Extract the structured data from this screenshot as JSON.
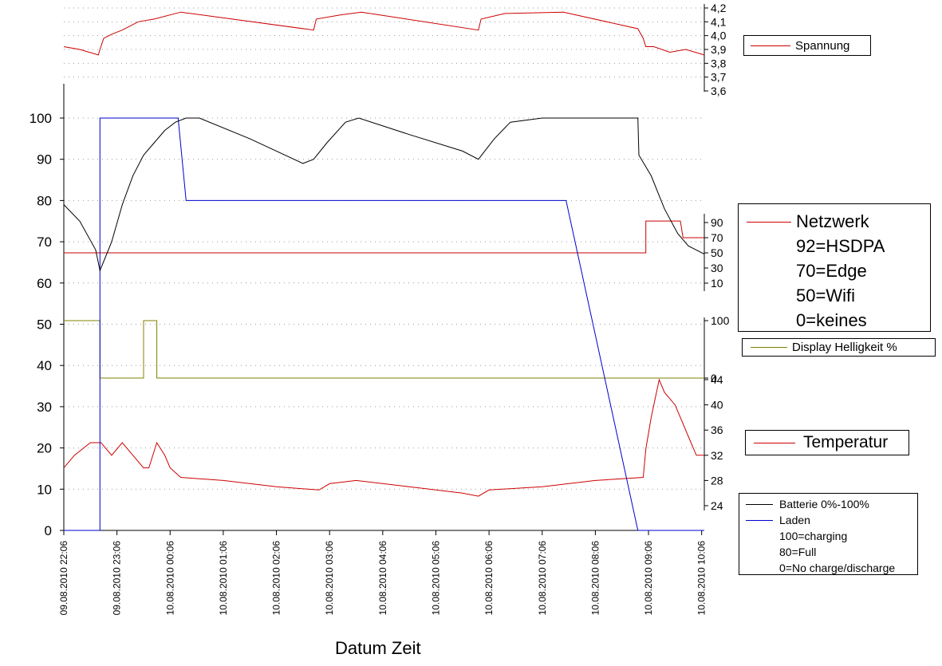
{
  "chart_data": {
    "type": "line",
    "xlabel": "Datum Zeit",
    "x_ticks": [
      "09.08.2010 22:06",
      "09.08.2010 23:06",
      "10.08.2010 00:06",
      "10.08.2010 01:06",
      "10.08.2010 02:06",
      "10.08.2010 03:06",
      "10.08.2010 04:06",
      "10.08.2010 05:06",
      "10.08.2010 06:06",
      "10.08.2010 07:06",
      "10.08.2010 08:06",
      "10.08.2010 09:06",
      "10.08.2010 10:06"
    ],
    "x_range_hours": [
      0,
      12.05
    ],
    "colors": {
      "batterie": "#000000",
      "laden": "#0000cc",
      "netzwerk": "#cc0000",
      "spannung": "#cc0000",
      "display": "#808000",
      "temperatur": "#cc0000"
    },
    "panels": {
      "main": {
        "ylim": [
          0,
          105
        ],
        "y_ticks": [
          "0",
          "10",
          "20",
          "30",
          "40",
          "50",
          "60",
          "70",
          "80",
          "90",
          "100"
        ],
        "series": [
          {
            "key": "batterie",
            "name": "Batterie 0%-100%",
            "x": [
              0,
              0.3,
              0.6,
              0.68,
              0.9,
              1.1,
              1.3,
              1.5,
              1.7,
              1.9,
              2.1,
              2.3,
              2.55,
              3.5,
              4.5,
              4.7,
              4.95,
              5.3,
              5.55,
              6.5,
              7.5,
              7.8,
              8.1,
              8.4,
              9,
              9.9,
              10.8,
              10.82,
              11.05,
              11.3,
              11.55,
              11.75,
              12.05
            ],
            "y": [
              79,
              75,
              68,
              63,
              70,
              79,
              86,
              91,
              94,
              97,
              99,
              100,
              100,
              95,
              89,
              90,
              94,
              99,
              100,
              96,
              92,
              90,
              95,
              99,
              100,
              100,
              100,
              91,
              86,
              78,
              72,
              69,
              67
            ]
          },
          {
            "key": "laden",
            "name": "Laden",
            "x": [
              0,
              0.68,
              0.68,
              2.15,
              2.3,
              9.45,
              10.8,
              12.05
            ],
            "y": [
              0,
              0,
              100,
              100,
              80,
              80,
              0,
              0
            ]
          }
        ]
      },
      "spannung": {
        "ylim": [
          3.6,
          4.2
        ],
        "y_ticks": [
          "3,6",
          "3,7",
          "3,8",
          "3,9",
          "4,0",
          "4,1",
          "4,2"
        ],
        "series": [
          {
            "key": "spannung",
            "name": "Spannung",
            "x": [
              0,
              0.3,
              0.65,
              0.68,
              0.75,
              0.9,
              1.1,
              1.4,
              1.7,
              2.2,
              4.7,
              4.75,
              5.2,
              5.6,
              7.8,
              7.85,
              8.3,
              9.4,
              10.8,
              10.9,
              10.95,
              11.1,
              11.4,
              11.7,
              12.05
            ],
            "y": [
              3.92,
              3.9,
              3.86,
              3.9,
              3.98,
              4.01,
              4.04,
              4.1,
              4.12,
              4.17,
              4.04,
              4.12,
              4.15,
              4.17,
              4.04,
              4.12,
              4.16,
              4.17,
              4.05,
              3.98,
              3.92,
              3.92,
              3.88,
              3.9,
              3.86
            ]
          }
        ]
      },
      "netzwerk": {
        "ylim": [
          0,
          100
        ],
        "y_ticks": [
          "10",
          "30",
          "50",
          "70",
          "90"
        ],
        "series": [
          {
            "key": "netzwerk",
            "name": "Netzwerk",
            "x": [
              0,
              10.95,
              10.95,
              11.6,
              11.65,
              12.05
            ],
            "y": [
              50,
              50,
              92,
              92,
              70,
              70
            ]
          }
        ],
        "legend": [
          "Netzwerk",
          "92=HSDPA",
          "70=Edge",
          "50=Wifi",
          "0=keines"
        ]
      },
      "display": {
        "ylim": [
          0,
          100
        ],
        "y_ticks": [
          "0",
          "100"
        ],
        "series": [
          {
            "key": "display",
            "name": "Display Helligkeit %",
            "x": [
              0,
              0.68,
              0.68,
              1.5,
              1.5,
              1.75,
              1.75,
              12.05
            ],
            "y": [
              100,
              100,
              0,
              0,
              100,
              100,
              0,
              0
            ]
          }
        ]
      },
      "temperatur": {
        "ylim": [
          20,
          44
        ],
        "y_ticks": [
          "24",
          "28",
          "32",
          "36",
          "40",
          "44"
        ],
        "series": [
          {
            "key": "temperatur",
            "name": "Temperatur",
            "x": [
              0,
              0.2,
              0.5,
              0.7,
              0.9,
              1.1,
              1.3,
              1.5,
              1.6,
              1.75,
              1.9,
              2,
              2.2,
              3,
              4,
              4.8,
              5,
              5.5,
              6.5,
              7.5,
              7.8,
              8,
              9,
              10,
              10.9,
              10.95,
              11.05,
              11.2,
              11.3,
              11.5,
              11.6,
              11.8,
              11.9,
              12.05
            ],
            "y": [
              30,
              32,
              34,
              34,
              32,
              34,
              32,
              30,
              30,
              34,
              32,
              30,
              28.5,
              28,
              27,
              26.5,
              27.5,
              28,
              27,
              26,
              25.5,
              26.5,
              27,
              28,
              28.5,
              33,
              38,
              44,
              42,
              40,
              38,
              34,
              32,
              32
            ]
          }
        ]
      }
    }
  },
  "legend_batterie": [
    "Batterie 0%-100%",
    "Laden",
    "100=charging",
    "80=Full",
    "0=No charge/discharge"
  ]
}
